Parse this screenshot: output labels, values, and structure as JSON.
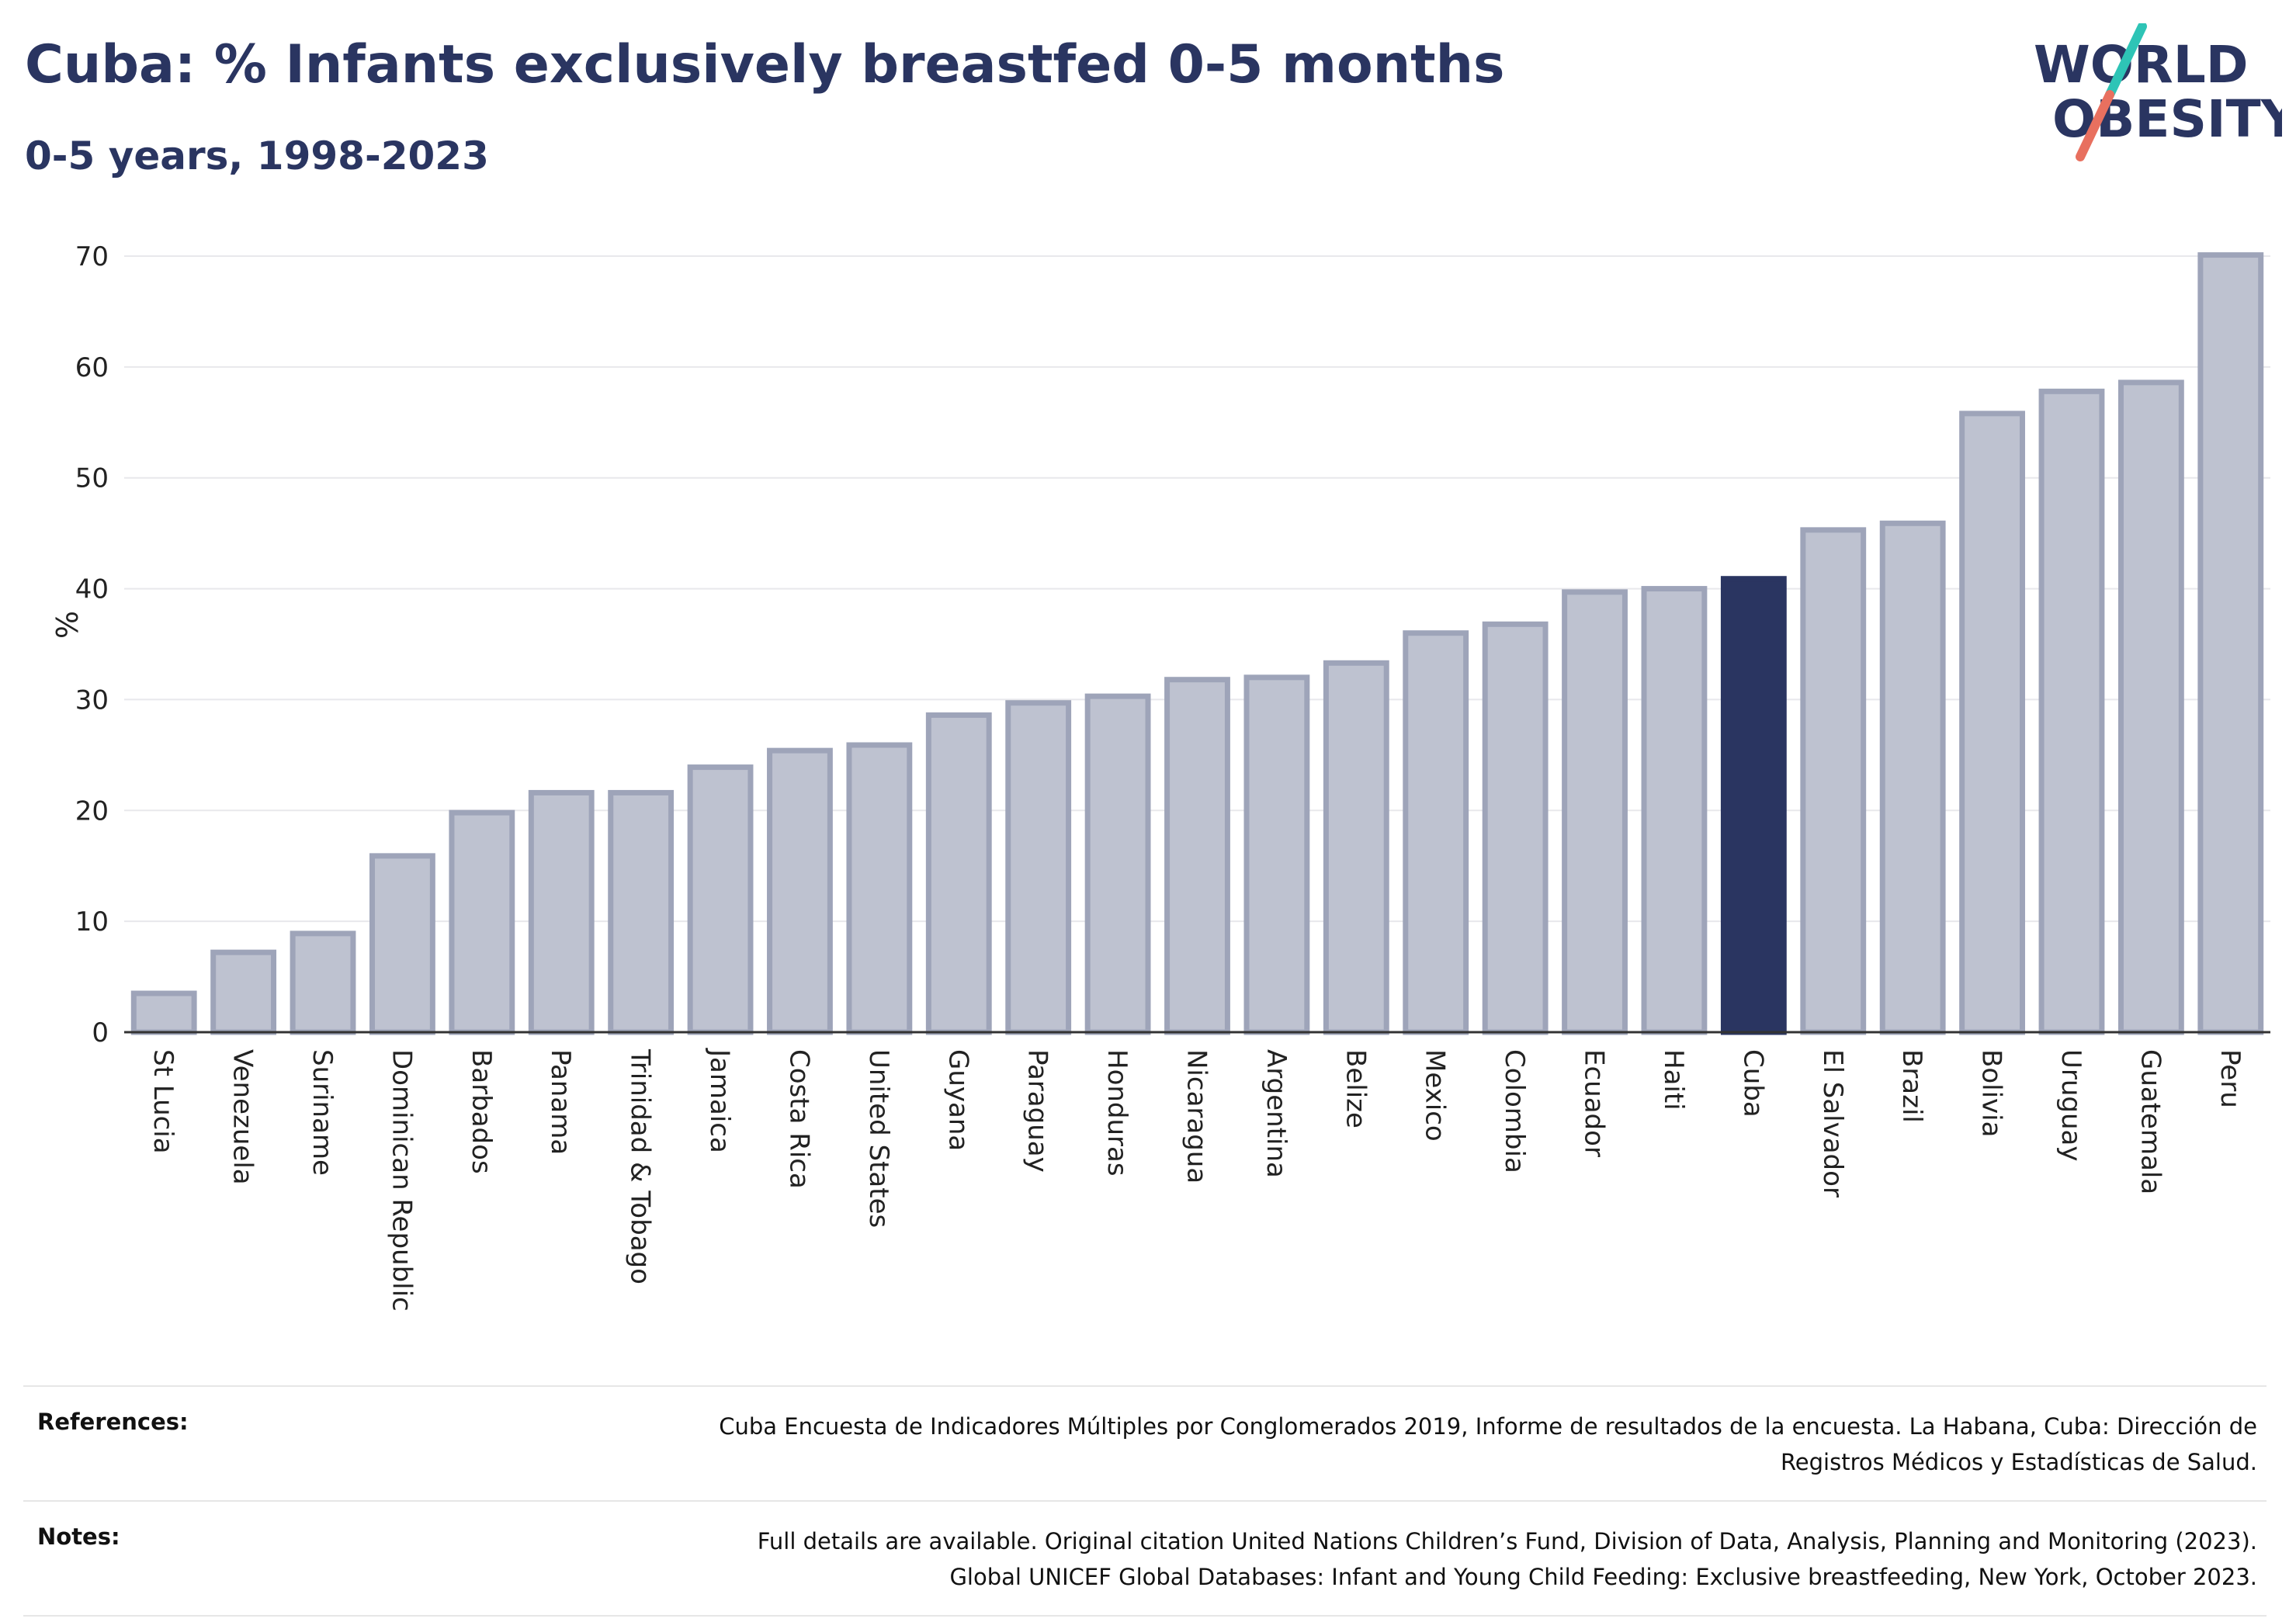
{
  "header": {
    "title": "Cuba: % Infants exclusively breastfed 0-5 months",
    "subtitle": "0-5 years, 1998-2023"
  },
  "logo": {
    "line1": "WORLD",
    "line2": "OBESITY",
    "colors": {
      "text": "#2a3561",
      "slash_top": "#2ec4b6",
      "slash_bottom": "#e8705f"
    }
  },
  "chart_data": {
    "type": "bar",
    "ylabel": "%",
    "ylim": [
      0,
      70
    ],
    "yticks": [
      0,
      10,
      20,
      30,
      40,
      50,
      60,
      70
    ],
    "grid": true,
    "highlight": "Cuba",
    "colors": {
      "bar": "#bec2d0",
      "bar_edge": "#9ea4b9",
      "highlight": "#2a3561",
      "grid": "#e8e8ec",
      "axis": "#333333"
    },
    "categories": [
      "St Lucia",
      "Venezuela",
      "Suriname",
      "Dominican Republic",
      "Barbados",
      "Panama",
      "Trinidad & Tobago",
      "Jamaica",
      "Costa Rica",
      "United States",
      "Guyana",
      "Paraguay",
      "Honduras",
      "Nicaragua",
      "Argentina",
      "Belize",
      "Mexico",
      "Colombia",
      "Ecuador",
      "Haiti",
      "Cuba",
      "El Salvador",
      "Brazil",
      "Bolivia",
      "Uruguay",
      "Guatemala",
      "Peru"
    ],
    "values": [
      3.5,
      7.2,
      8.9,
      15.9,
      19.8,
      21.6,
      21.6,
      23.9,
      25.4,
      25.9,
      28.6,
      29.7,
      30.3,
      31.8,
      32.0,
      33.3,
      36.0,
      36.8,
      39.7,
      40.0,
      40.9,
      45.3,
      45.9,
      55.8,
      57.8,
      58.6,
      70.1
    ]
  },
  "references": [
    {
      "label": "References:",
      "lines": [
        "Cuba Encuesta de Indicadores Múltiples por Conglomerados 2019, Informe de resultados de la encuesta. La Habana, Cuba: Dirección de",
        "Registros Médicos y Estadísticas de Salud."
      ]
    },
    {
      "label": "Notes:",
      "lines": [
        "Full details are available. Original citation United Nations Children’s Fund, Division of Data, Analysis, Planning and Monitoring (2023).",
        "Global UNICEF Global Databases: Infant and Young Child Feeding: Exclusive breastfeeding, New York, October 2023."
      ]
    }
  ]
}
